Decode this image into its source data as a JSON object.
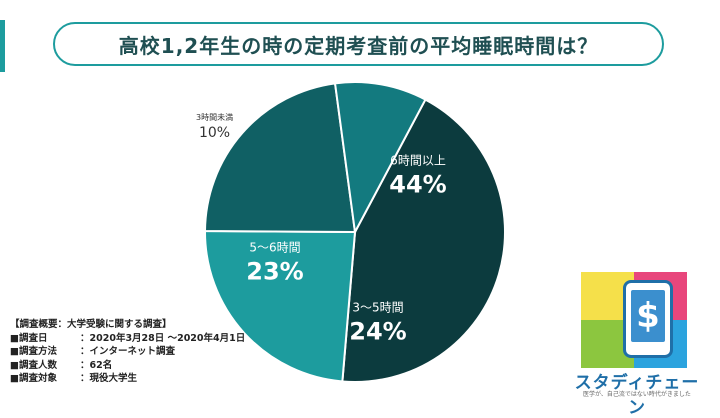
{
  "title": "高校1,2年生の時の定期考査前の平均睡眠時間は？",
  "chart_data": {
    "type": "pie",
    "title": "高校1,2年生の時の定期考査前の平均睡眠時間は？",
    "slices": [
      {
        "label": "6時間以上",
        "value": 44,
        "display": "44%",
        "color": "#0c3b3e"
      },
      {
        "label": "3〜5時間",
        "value": 24,
        "display": "24%",
        "color": "#1d9c9e"
      },
      {
        "label": "5〜6時間",
        "value": 23,
        "display": "23%",
        "color": "#106064"
      },
      {
        "label": "3時間未満",
        "value": 10,
        "display": "10%",
        "color": "#137a7f"
      }
    ],
    "start_angle_deg": -62,
    "direction": "clockwise"
  },
  "survey": {
    "heading": "【調査概要：大学受験に関する調査】",
    "rows": [
      {
        "label": "■調査日",
        "value": "：2020年3月28日 〜2020年4月1日"
      },
      {
        "label": "■調査方法",
        "value": "：インターネット調査"
      },
      {
        "label": "■調査人数",
        "value": "：62名"
      },
      {
        "label": "■調査対象",
        "value": "：現役大学生"
      }
    ]
  },
  "logo": {
    "name": "スタディチェーン",
    "tagline": "医学が、自己流ではない時代がきました",
    "glyph": "$",
    "colors": {
      "yellow": "#f5e04a",
      "pink": "#e8467c",
      "green": "#8cc63f",
      "blue": "#2ba3de",
      "phone": "#1f6fa8"
    }
  },
  "colors": {
    "accent": "#1d9c9e",
    "title_text": "#1f4f52"
  }
}
